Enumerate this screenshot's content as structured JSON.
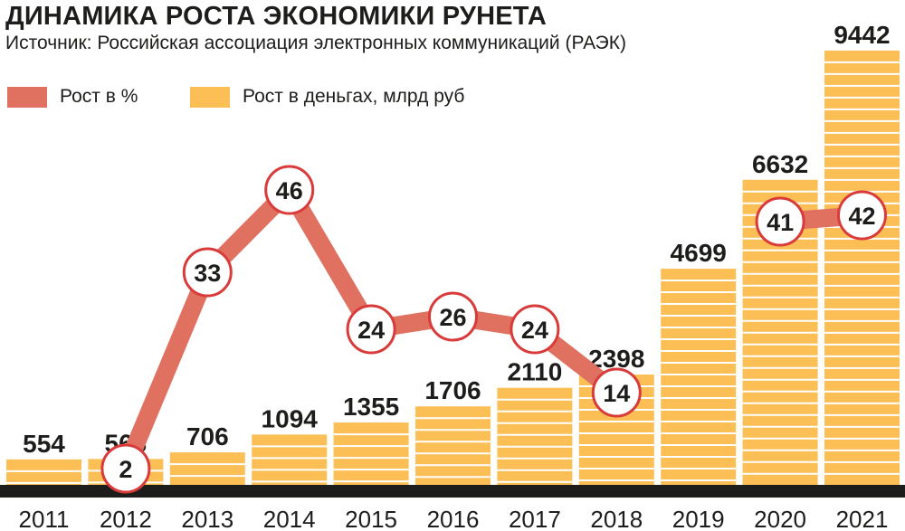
{
  "title": "ДИНАМИКА РОСТА ЭКОНОМИКИ РУНЕТА",
  "subtitle": "Источник: Российская ассоциация электронных коммуникаций (РАЭК)",
  "colors": {
    "bar": "#fbbf56",
    "bar_stripe": "#ffffff",
    "line": "#e07060",
    "marker_ring": "#d93a3a",
    "baseline": "#1d1d1b",
    "text": "#1d1d1b"
  },
  "legend": [
    {
      "label": "Рост в %",
      "color": "#e07060"
    },
    {
      "label": "Рост в деньгах, млрд руб",
      "color": "#fbbf56"
    }
  ],
  "chart_data": {
    "type": "bar",
    "categories": [
      "2011",
      "2012",
      "2013",
      "2014",
      "2015",
      "2016",
      "2017",
      "2018",
      "2019",
      "2020",
      "2021"
    ],
    "series": [
      {
        "name": "Рост в деньгах, млрд руб",
        "type": "bar",
        "values": [
          554,
          563,
          706,
          1094,
          1355,
          1706,
          2110,
          2398,
          4699,
          6632,
          9442
        ]
      },
      {
        "name": "Рост в %",
        "type": "line",
        "values": [
          null,
          2,
          33,
          46,
          24,
          26,
          24,
          14,
          null,
          41,
          42
        ]
      }
    ],
    "legend_position": "top-left",
    "grid": false
  }
}
